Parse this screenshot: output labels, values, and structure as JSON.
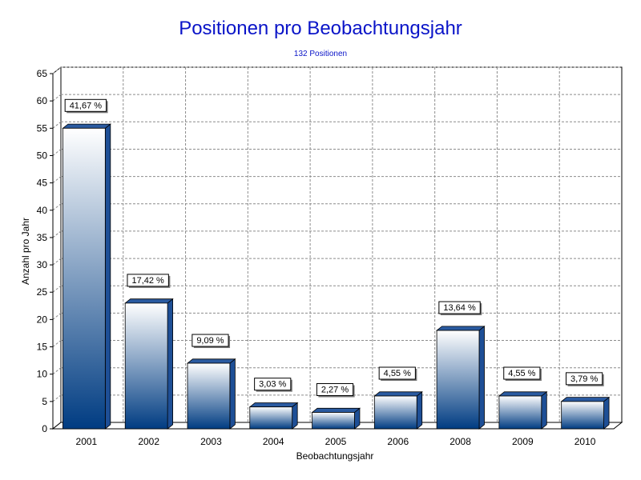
{
  "chart_data": {
    "type": "bar",
    "title": "Positionen pro Beobachtungsjahr",
    "subtitle": "132 Positionen",
    "xlabel": "Beobachtungsjahr",
    "ylabel": "Anzahl pro Jahr",
    "categories": [
      "2001",
      "2002",
      "2003",
      "2004",
      "2005",
      "2006",
      "2008",
      "2009",
      "2010"
    ],
    "values": [
      55,
      23,
      12,
      4,
      3,
      6,
      18,
      6,
      5
    ],
    "data_labels": [
      "41,67 %",
      "17,42 %",
      "9,09 %",
      "3,03 %",
      "2,27 %",
      "4,55 %",
      "13,64 %",
      "4,55 %",
      "3,79 %"
    ],
    "ylim": [
      0,
      65
    ],
    "yticks": [
      0,
      5,
      10,
      15,
      20,
      25,
      30,
      35,
      40,
      45,
      50,
      55,
      60,
      65
    ],
    "grid": true,
    "legend": "none",
    "colors": {
      "bar_top": "#ffffff",
      "bar_bottom": "#003c82",
      "bar_side": "#1e4f96",
      "bar_cap": "#2a5aa0",
      "title": "#0a14c8",
      "grid": "#8c8c8c"
    }
  }
}
